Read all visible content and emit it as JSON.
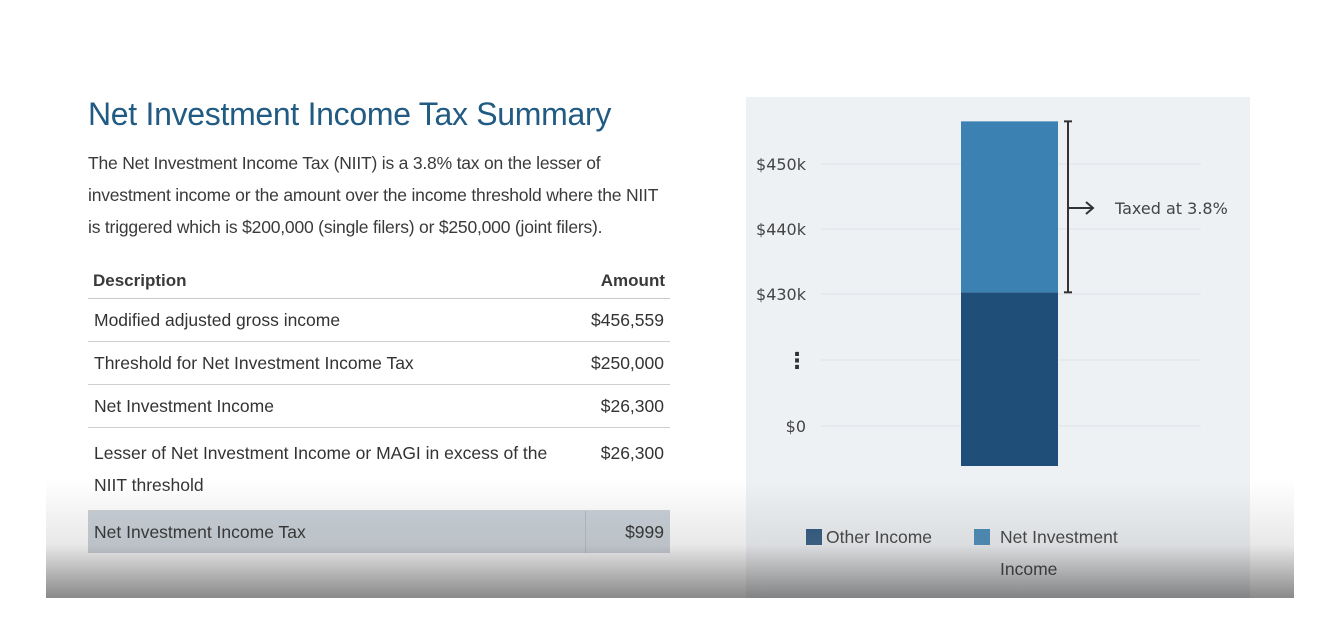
{
  "summary": {
    "title": "Net Investment Income Tax Summary",
    "description": "The Net Investment Income Tax (NIIT) is a 3.8% tax on the lesser of investment income or the amount over the income threshold where the NIIT is triggered which is $200,000 (single filers) or $250,000 (joint filers)."
  },
  "table": {
    "headers": {
      "description": "Description",
      "amount": "Amount"
    },
    "rows": [
      {
        "description": "Modified adjusted gross income",
        "amount": "$456,559"
      },
      {
        "description": "Threshold for Net Investment Income Tax",
        "amount": "$250,000"
      },
      {
        "description": "Net Investment Income",
        "amount": "$26,300"
      },
      {
        "description": "Lesser of Net Investment Income or MAGI in excess of the NIIT threshold",
        "amount": "$26,300"
      }
    ],
    "total": {
      "description": "Net Investment Income Tax",
      "amount": "$999"
    }
  },
  "chart_data": {
    "type": "bar",
    "stacked": true,
    "y_axis_break": true,
    "y_ticks": [
      "$0",
      "$430k",
      "$440k",
      "$450k"
    ],
    "break_symbol": "⋮",
    "series": [
      {
        "name": "Other Income",
        "value": 430259,
        "color": "#1f4e79"
      },
      {
        "name": "Net Investment Income",
        "value": 26300,
        "color": "#3b82b3"
      }
    ],
    "total": 456559,
    "annotation": "Taxed at 3.8%",
    "legend_position": "bottom",
    "grid": true
  }
}
